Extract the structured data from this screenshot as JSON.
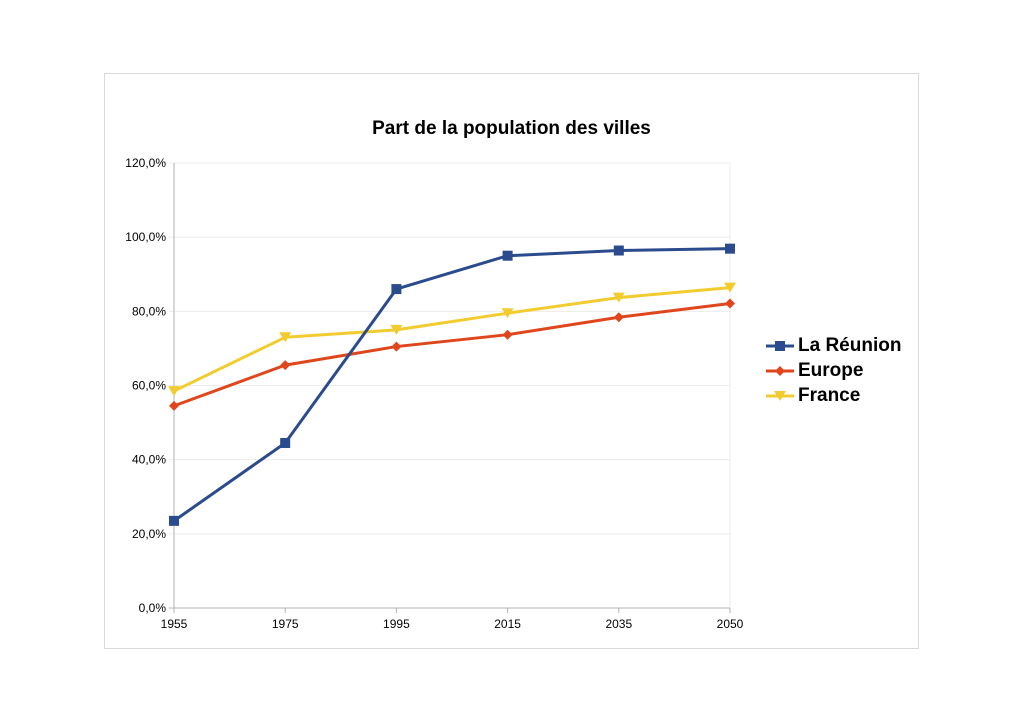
{
  "chart_data": {
    "type": "line",
    "title": "Part de la population des villes",
    "categories": [
      "1955",
      "1975",
      "1995",
      "2015",
      "2035",
      "2050"
    ],
    "ylim": [
      0,
      120
    ],
    "y_ticks": [
      "0,0%",
      "20,0%",
      "40,0%",
      "60,0%",
      "80,0%",
      "100,0%",
      "120,0%"
    ],
    "grid": true,
    "legend_position": "right",
    "series": [
      {
        "name": "La Réunion",
        "color": "#2a4b8d",
        "marker": "square",
        "values": [
          23.5,
          44.5,
          86.0,
          95.0,
          96.4,
          96.9
        ]
      },
      {
        "name": "Europe",
        "color": "#e0461c",
        "marker": "diamond",
        "values": [
          54.5,
          65.5,
          70.5,
          73.7,
          78.4,
          82.1
        ]
      },
      {
        "name": "France",
        "color": "#f2cc2f",
        "marker": "triangle-down",
        "values": [
          58.5,
          73.0,
          75.0,
          79.5,
          83.7,
          86.4
        ]
      }
    ]
  }
}
